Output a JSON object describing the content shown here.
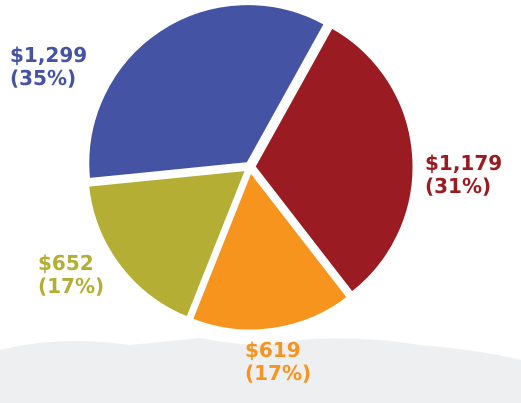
{
  "chart_data": {
    "type": "pie",
    "values": [
      1299,
      1179,
      619,
      652
    ],
    "value_labels": [
      "$1,299",
      "$1,179",
      "$619",
      "$652"
    ],
    "percents": [
      35,
      31,
      17,
      17
    ],
    "percent_labels": [
      "(35%)",
      "(31%)",
      "(17%)",
      "(17%)"
    ],
    "colors": [
      "#4453a3",
      "#9a1b21",
      "#f6941e",
      "#b4ae35"
    ]
  }
}
